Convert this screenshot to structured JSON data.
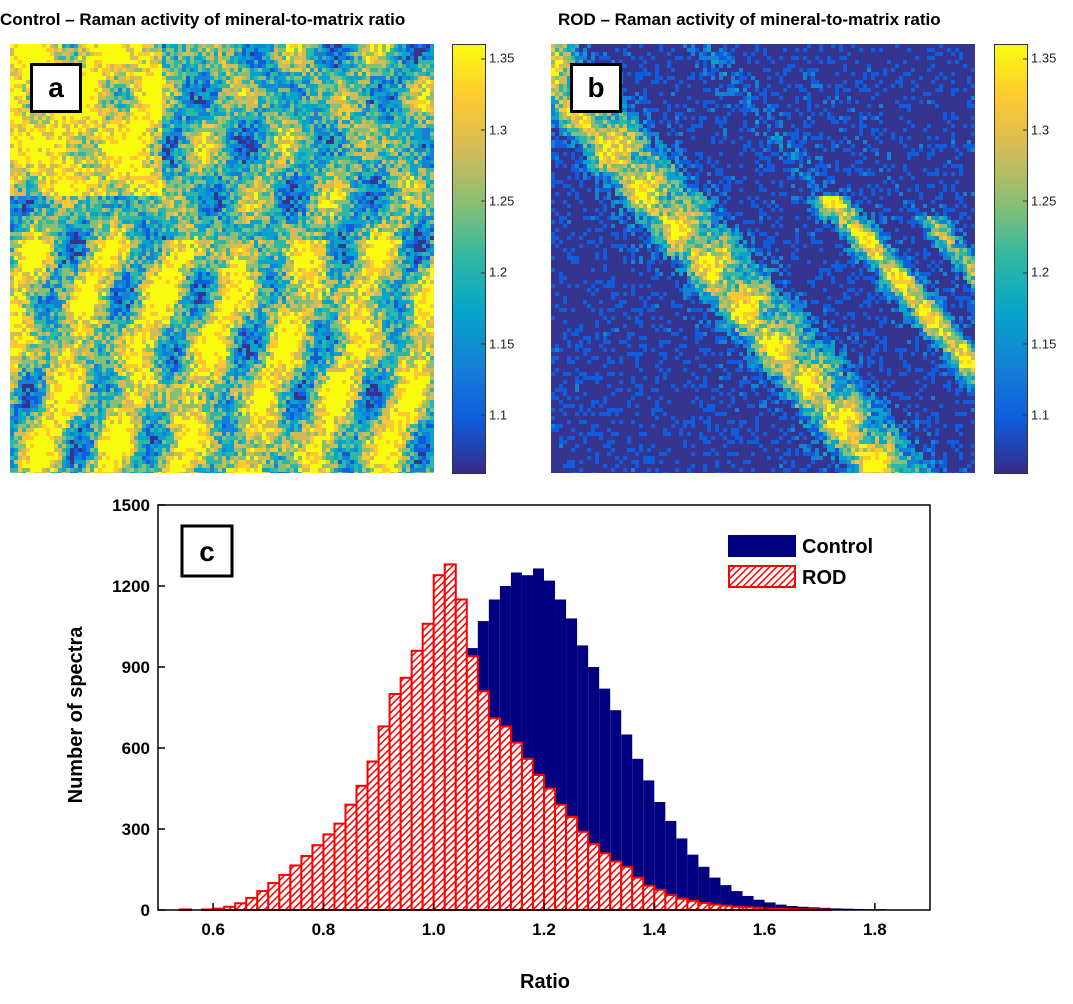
{
  "panels": {
    "a": {
      "letter": "a",
      "title": "Control – Raman activity of mineral-to-matrix ratio"
    },
    "b": {
      "letter": "b",
      "title": "ROD – Raman activity of mineral-to-matrix ratio"
    },
    "c": {
      "letter": "c"
    }
  },
  "colorbar": {
    "ticks": [
      "1.35",
      "1.3",
      "1.25",
      "1.2",
      "1.15",
      "1.1"
    ],
    "tick_values": [
      1.35,
      1.3,
      1.25,
      1.2,
      1.15,
      1.1
    ],
    "range": [
      1.06,
      1.36
    ],
    "colors": [
      "#352a87",
      "#0f5cdd",
      "#1481d6",
      "#06a4ca",
      "#2eb7a4",
      "#87bf77",
      "#d1bb59",
      "#fec832",
      "#f9fb0e"
    ]
  },
  "chart_data": {
    "type": "bar",
    "title": "",
    "xlabel": "Ratio",
    "ylabel": "Number of spectra",
    "xlim": [
      0.5,
      1.9
    ],
    "ylim": [
      0,
      1500
    ],
    "xticks": [
      "0.6",
      "0.8",
      "1.0",
      "1.2",
      "1.4",
      "1.6",
      "1.8"
    ],
    "xtick_values": [
      0.6,
      0.8,
      1.0,
      1.2,
      1.4,
      1.6,
      1.8
    ],
    "yticks": [
      "0",
      "300",
      "600",
      "900",
      "1200",
      "1500"
    ],
    "ytick_values": [
      0,
      300,
      600,
      900,
      1200,
      1500
    ],
    "bin_width": 0.02,
    "legend": {
      "position": "top-right"
    },
    "series": [
      {
        "name": "Control",
        "color": "#000080",
        "fill": "solid",
        "x": [
          0.59,
          0.61,
          0.63,
          0.65,
          0.67,
          0.69,
          0.71,
          0.73,
          0.75,
          0.77,
          0.79,
          0.81,
          0.83,
          0.85,
          0.87,
          0.89,
          0.91,
          0.93,
          0.95,
          0.97,
          0.99,
          1.01,
          1.03,
          1.05,
          1.07,
          1.09,
          1.11,
          1.13,
          1.15,
          1.17,
          1.19,
          1.21,
          1.23,
          1.25,
          1.27,
          1.29,
          1.31,
          1.33,
          1.35,
          1.37,
          1.39,
          1.41,
          1.43,
          1.45,
          1.47,
          1.49,
          1.51,
          1.53,
          1.55,
          1.57,
          1.59,
          1.61,
          1.63,
          1.65,
          1.67,
          1.69,
          1.71,
          1.73,
          1.75,
          1.77,
          1.79,
          1.81,
          1.83,
          1.85,
          1.87,
          1.89
        ],
        "values": [
          0,
          0,
          2,
          3,
          5,
          8,
          12,
          16,
          22,
          30,
          40,
          55,
          75,
          100,
          135,
          175,
          225,
          285,
          355,
          440,
          540,
          640,
          740,
          850,
          970,
          1070,
          1150,
          1200,
          1250,
          1240,
          1265,
          1220,
          1150,
          1080,
          980,
          900,
          820,
          740,
          650,
          560,
          480,
          400,
          330,
          265,
          205,
          160,
          120,
          92,
          70,
          52,
          38,
          28,
          20,
          15,
          12,
          10,
          8,
          6,
          5,
          4,
          3,
          3,
          2,
          2,
          1,
          1
        ]
      },
      {
        "name": "ROD",
        "color": "#ff0000",
        "fill": "hatched",
        "x": [
          0.55,
          0.57,
          0.59,
          0.61,
          0.63,
          0.65,
          0.67,
          0.69,
          0.71,
          0.73,
          0.75,
          0.77,
          0.79,
          0.81,
          0.83,
          0.85,
          0.87,
          0.89,
          0.91,
          0.93,
          0.95,
          0.97,
          0.99,
          1.01,
          1.03,
          1.05,
          1.07,
          1.09,
          1.11,
          1.13,
          1.15,
          1.17,
          1.19,
          1.21,
          1.23,
          1.25,
          1.27,
          1.29,
          1.31,
          1.33,
          1.35,
          1.37,
          1.39,
          1.41,
          1.43,
          1.45,
          1.47,
          1.49,
          1.51,
          1.53,
          1.55,
          1.57,
          1.59,
          1.61,
          1.63,
          1.65,
          1.67,
          1.69,
          1.71
        ],
        "values": [
          2,
          0,
          2,
          5,
          12,
          25,
          45,
          70,
          100,
          130,
          165,
          200,
          240,
          280,
          320,
          390,
          460,
          550,
          680,
          800,
          860,
          960,
          1060,
          1240,
          1280,
          1150,
          940,
          810,
          710,
          680,
          620,
          560,
          500,
          450,
          390,
          345,
          290,
          245,
          210,
          180,
          160,
          120,
          90,
          75,
          55,
          42,
          34,
          26,
          20,
          16,
          12,
          10,
          8,
          5,
          4,
          3,
          2,
          2,
          1
        ]
      }
    ]
  }
}
